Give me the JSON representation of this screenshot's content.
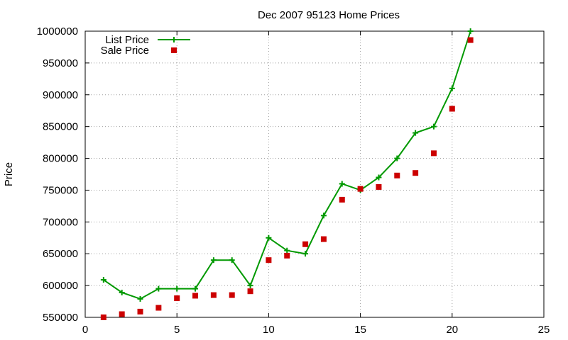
{
  "chart_data": {
    "type": "line",
    "title": "Dec 2007 95123 Home Prices",
    "xlabel": "",
    "ylabel": "Price",
    "xlim": [
      0,
      25
    ],
    "ylim": [
      550000,
      1000000
    ],
    "x_ticks": [
      0,
      5,
      10,
      15,
      20,
      25
    ],
    "y_ticks": [
      550000,
      600000,
      650000,
      700000,
      750000,
      800000,
      850000,
      900000,
      950000,
      1000000
    ],
    "grid": true,
    "legend_position": "top-left",
    "series": [
      {
        "name": "List Price",
        "style": "line-with-plus-markers",
        "color": "#009900",
        "x": [
          1,
          2,
          3,
          4,
          5,
          6,
          7,
          8,
          9,
          10,
          11,
          12,
          13,
          14,
          15,
          16,
          17,
          18,
          19,
          20,
          21
        ],
        "y": [
          609000,
          589000,
          579000,
          595000,
          595000,
          595000,
          640000,
          640000,
          600000,
          675000,
          655000,
          650000,
          710000,
          760000,
          750000,
          770000,
          800000,
          840000,
          850000,
          910000,
          1000000
        ]
      },
      {
        "name": "Sale Price",
        "style": "square-markers",
        "color": "#cc0000",
        "x": [
          1,
          2,
          3,
          4,
          5,
          6,
          7,
          8,
          9,
          10,
          11,
          12,
          13,
          14,
          15,
          16,
          17,
          18,
          19,
          20,
          21
        ],
        "y": [
          550000,
          555000,
          559000,
          565000,
          580000,
          584000,
          585000,
          585000,
          591000,
          640000,
          647000,
          665000,
          673000,
          735000,
          752000,
          755000,
          773000,
          777000,
          808000,
          878000,
          986000
        ]
      }
    ]
  }
}
